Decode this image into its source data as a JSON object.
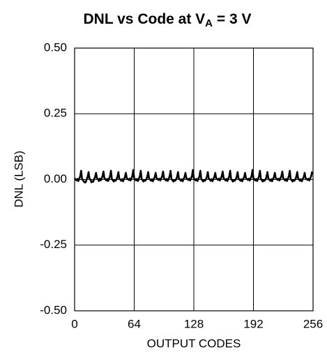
{
  "chart_data": {
    "type": "line",
    "title": [
      "DNL vs Code at V",
      "A",
      " = 3 V"
    ],
    "xlabel": "OUTPUT CODES",
    "ylabel": "DNL (LSB)",
    "xlim": [
      0,
      256
    ],
    "xticks": [
      0,
      64,
      128,
      192,
      256
    ],
    "ylim": [
      -0.5,
      0.5
    ],
    "yticks": [
      {
        "value": 0.5,
        "label": "0.50"
      },
      {
        "value": 0.25,
        "label": "0.25"
      },
      {
        "value": 0,
        "label": "0.00"
      },
      {
        "value": -0.25,
        "label": "-0.25"
      },
      {
        "value": -0.5,
        "label": "-0.50"
      }
    ],
    "grid": true,
    "color": "#000000",
    "x": [
      0,
      1,
      2,
      3,
      4,
      5,
      6,
      7,
      8,
      9,
      10,
      11,
      12,
      13,
      14,
      15,
      16,
      17,
      18,
      19,
      20,
      21,
      22,
      23,
      24,
      25,
      26,
      27,
      28,
      29,
      30,
      31,
      32,
      33,
      34,
      35,
      36,
      37,
      38,
      39,
      40,
      41,
      42,
      43,
      44,
      45,
      46,
      47,
      48,
      49,
      50,
      51,
      52,
      53,
      54,
      55,
      56,
      57,
      58,
      59,
      60,
      61,
      62,
      63,
      64,
      65,
      66,
      67,
      68,
      69,
      70,
      71,
      72,
      73,
      74,
      75,
      76,
      77,
      78,
      79,
      80,
      81,
      82,
      83,
      84,
      85,
      86,
      87,
      88,
      89,
      90,
      91,
      92,
      93,
      94,
      95,
      96,
      97,
      98,
      99,
      100,
      101,
      102,
      103,
      104,
      105,
      106,
      107,
      108,
      109,
      110,
      111,
      112,
      113,
      114,
      115,
      116,
      117,
      118,
      119,
      120,
      121,
      122,
      123,
      124,
      125,
      126,
      127,
      128,
      129,
      130,
      131,
      132,
      133,
      134,
      135,
      136,
      137,
      138,
      139,
      140,
      141,
      142,
      143,
      144,
      145,
      146,
      147,
      148,
      149,
      150,
      151,
      152,
      153,
      154,
      155,
      156,
      157,
      158,
      159,
      160,
      161,
      162,
      163,
      164,
      165,
      166,
      167,
      168,
      169,
      170,
      171,
      172,
      173,
      174,
      175,
      176,
      177,
      178,
      179,
      180,
      181,
      182,
      183,
      184,
      185,
      186,
      187,
      188,
      189,
      190,
      191,
      192,
      193,
      194,
      195,
      196,
      197,
      198,
      199,
      200,
      201,
      202,
      203,
      204,
      205,
      206,
      207,
      208,
      209,
      210,
      211,
      212,
      213,
      214,
      215,
      216,
      217,
      218,
      219,
      220,
      221,
      222,
      223,
      224,
      225,
      226,
      227,
      228,
      229,
      230,
      231,
      232,
      233,
      234,
      235,
      236,
      237,
      238,
      239,
      240,
      241,
      242,
      243,
      244,
      245,
      246,
      247,
      248,
      249,
      250,
      251,
      252,
      253,
      254,
      255
    ],
    "values": [
      0.004,
      0.001,
      -0.004,
      0.002,
      -0.006,
      0.003,
      0.012,
      0.033,
      0.002,
      -0.003,
      -0.008,
      -0.012,
      -0.01,
      0.001,
      0.01,
      0.028,
      0.003,
      0.0,
      -0.011,
      -0.007,
      -0.009,
      0.002,
      0.009,
      0.025,
      0.005,
      0.002,
      -0.006,
      0.003,
      -0.004,
      0.004,
      0.013,
      0.03,
      0.004,
      0.001,
      -0.004,
      0.002,
      -0.006,
      0.003,
      0.012,
      0.033,
      0.002,
      -0.003,
      -0.008,
      -0.002,
      -0.005,
      0.001,
      0.01,
      0.028,
      0.003,
      0.0,
      -0.005,
      0.001,
      -0.007,
      0.002,
      0.009,
      0.025,
      0.005,
      0.002,
      -0.002,
      0.003,
      -0.004,
      0.004,
      0.013,
      0.036,
      0.004,
      0.001,
      -0.004,
      0.002,
      -0.006,
      0.003,
      0.012,
      0.033,
      0.002,
      -0.003,
      -0.008,
      -0.002,
      -0.005,
      0.001,
      0.01,
      0.028,
      0.003,
      0.0,
      -0.005,
      0.001,
      -0.007,
      0.002,
      0.009,
      0.025,
      0.005,
      0.002,
      -0.002,
      0.003,
      -0.004,
      0.004,
      0.013,
      0.03,
      0.004,
      0.001,
      -0.004,
      0.002,
      -0.006,
      0.003,
      0.012,
      0.033,
      0.002,
      -0.003,
      -0.008,
      -0.002,
      -0.005,
      0.001,
      0.01,
      0.028,
      0.003,
      0.0,
      -0.005,
      0.001,
      -0.007,
      0.002,
      0.009,
      0.025,
      0.005,
      0.002,
      -0.002,
      0.003,
      -0.004,
      0.004,
      0.013,
      0.036,
      0.004,
      0.001,
      -0.004,
      0.002,
      -0.006,
      0.003,
      0.012,
      0.033,
      0.002,
      -0.003,
      -0.008,
      -0.002,
      -0.005,
      0.001,
      0.01,
      0.028,
      0.003,
      0.0,
      -0.005,
      0.001,
      -0.007,
      0.002,
      0.009,
      0.025,
      0.005,
      0.002,
      -0.002,
      0.003,
      -0.004,
      0.004,
      0.013,
      0.03,
      0.004,
      0.001,
      -0.004,
      0.002,
      -0.006,
      0.003,
      0.012,
      0.033,
      0.002,
      -0.003,
      -0.008,
      -0.002,
      -0.005,
      0.001,
      0.01,
      0.028,
      0.003,
      0.0,
      -0.005,
      0.001,
      -0.007,
      0.002,
      0.009,
      0.025,
      0.005,
      0.002,
      -0.002,
      0.003,
      -0.004,
      0.004,
      0.013,
      0.036,
      0.004,
      0.001,
      -0.004,
      0.002,
      -0.006,
      0.003,
      0.012,
      0.033,
      0.002,
      -0.003,
      -0.008,
      -0.002,
      -0.005,
      0.001,
      0.01,
      0.028,
      0.003,
      0.0,
      -0.005,
      0.001,
      -0.007,
      0.002,
      0.009,
      0.025,
      0.005,
      0.002,
      -0.002,
      0.003,
      -0.004,
      0.004,
      0.013,
      0.03,
      0.004,
      0.001,
      -0.004,
      0.002,
      -0.006,
      0.003,
      0.012,
      0.033,
      0.002,
      -0.003,
      -0.008,
      -0.002,
      -0.005,
      0.001,
      0.01,
      0.028,
      0.003,
      0.0,
      -0.005,
      0.001,
      -0.007,
      0.002,
      0.009,
      0.025,
      0.005,
      0.002,
      -0.002,
      0.003,
      -0.004,
      0.004,
      0.013,
      0.03
    ]
  }
}
